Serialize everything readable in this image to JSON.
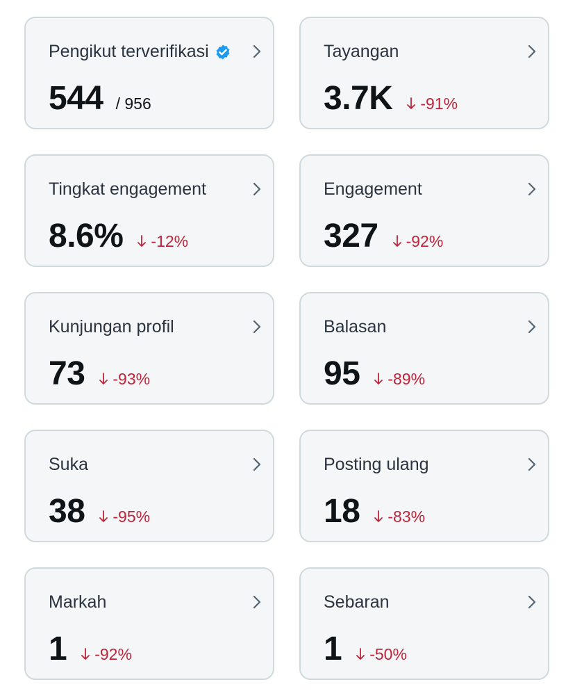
{
  "cards": [
    {
      "label": "Pengikut terverifikasi",
      "value": "544",
      "sub": "/ 956",
      "verified_icon": "verified-badge-icon"
    },
    {
      "label": "Tayangan",
      "value": "3.7K",
      "change": "-91%"
    },
    {
      "label": "Tingkat engagement",
      "value": "8.6%",
      "change": "-12%"
    },
    {
      "label": "Engagement",
      "value": "327",
      "change": "-92%"
    },
    {
      "label": "Kunjungan profil",
      "value": "73",
      "change": "-93%"
    },
    {
      "label": "Balasan",
      "value": "95",
      "change": "-89%"
    },
    {
      "label": "Suka",
      "value": "38",
      "change": "-95%"
    },
    {
      "label": "Posting ulang",
      "value": "18",
      "change": "-83%"
    },
    {
      "label": "Markah",
      "value": "1",
      "change": "-92%"
    },
    {
      "label": "Sebaran",
      "value": "1",
      "change": "-50%"
    }
  ],
  "colors": {
    "card_bg": "#f5f6f7",
    "card_border": "#cfd9de",
    "negative": "#c0243a",
    "verified": "#1d9bf0",
    "chevron": "#536471"
  },
  "icons": {
    "chevron": "chevron-right-icon",
    "arrow": "arrow-down-icon",
    "verified": "verified-badge-icon"
  }
}
